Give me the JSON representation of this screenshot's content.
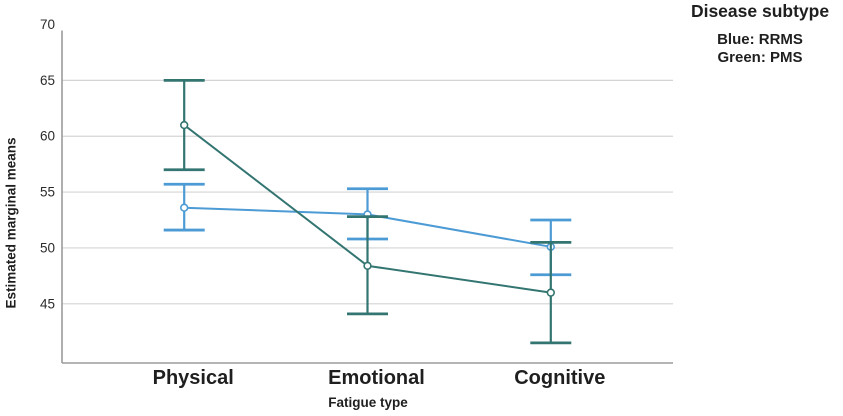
{
  "chart_data": {
    "type": "line",
    "title": "",
    "ylabel": "Estimated marginal means",
    "xlabel": "Fatigue type",
    "categories": [
      "Physical",
      "Emotional",
      "Cognitive"
    ],
    "yticks": [
      70,
      65,
      60,
      55,
      50,
      45
    ],
    "ylim": [
      39.7,
      70
    ],
    "grid": true,
    "error_bars": true,
    "legend_position": "top-right",
    "series": [
      {
        "name": "RRMS",
        "color": "#4d9bd5",
        "means": [
          53.6,
          53.0,
          50.1
        ],
        "ci_low": [
          51.6,
          50.8,
          47.6
        ],
        "ci_high": [
          55.7,
          55.3,
          52.5
        ]
      },
      {
        "name": "PMS",
        "color": "#337571",
        "means": [
          61.0,
          48.4,
          46.0
        ],
        "ci_low": [
          57.0,
          44.1,
          41.5
        ],
        "ci_high": [
          65.0,
          52.8,
          50.5
        ]
      }
    ],
    "colors": {
      "grid": "#d4d4d4",
      "axis": "#9b9b9b",
      "text": "#1f1f1f",
      "tick_text": "#2b2b2b"
    }
  },
  "legend": {
    "title": "Disease subtype",
    "entries": [
      {
        "label": "Blue: RRMS",
        "series": "RRMS"
      },
      {
        "label": "Green: PMS",
        "series": "PMS"
      }
    ]
  }
}
